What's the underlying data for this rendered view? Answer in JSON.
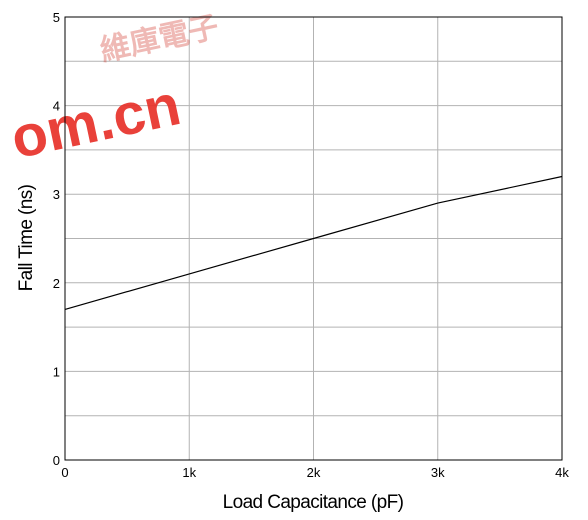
{
  "chart_data": {
    "type": "line",
    "title": "",
    "xlabel": "Load Capacitance (pF)",
    "ylabel": "Fall Time (ns)",
    "xlim": [
      0,
      4000
    ],
    "ylim": [
      0,
      5
    ],
    "x_ticks": [
      0,
      1000,
      2000,
      3000,
      4000
    ],
    "x_tick_labels": [
      "0",
      "1k",
      "2k",
      "3k",
      "4k"
    ],
    "y_ticks": [
      0,
      1,
      2,
      3,
      4,
      5
    ],
    "y_tick_labels": [
      "0",
      "1",
      "2",
      "3",
      "4",
      "5"
    ],
    "y_minor_grid": [
      0.5,
      1.5,
      2.5,
      3.5,
      4.5
    ],
    "grid": true,
    "series": [
      {
        "x": [
          0,
          1000,
          2000,
          3000,
          4000
        ],
        "y": [
          1.7,
          2.1,
          2.5,
          2.9,
          3.2
        ],
        "color": "#000000"
      }
    ]
  },
  "watermark": {
    "latin_text": "om.cn",
    "cjk_text": "維庫電子",
    "color": "#e8312a"
  }
}
